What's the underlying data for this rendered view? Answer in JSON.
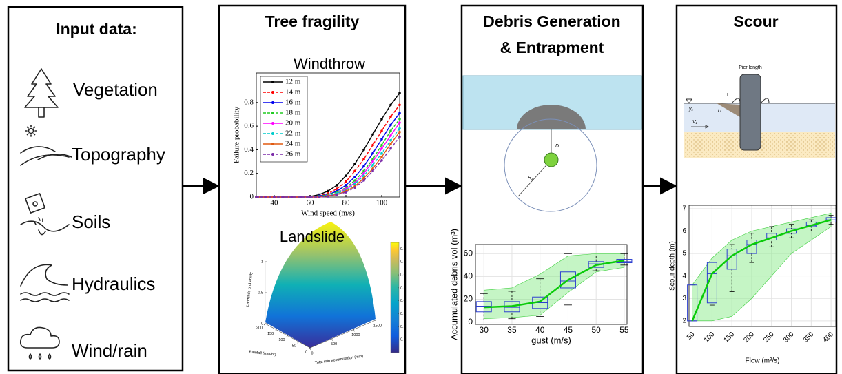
{
  "input_panel": {
    "title": "Input data:",
    "items": [
      "Vegetation",
      "Topography",
      "Soils",
      "Hydraulics",
      "Wind/rain"
    ]
  },
  "fragility_panel": {
    "title": "Tree fragility",
    "windthrow": {
      "type": "line",
      "title": "Windthrow",
      "xlabel": "Wind speed (m/s)",
      "ylabel": "Failure probability",
      "xlim": [
        30,
        110
      ],
      "ylim": [
        0,
        1.05
      ],
      "xticks": [
        40,
        60,
        80,
        100
      ],
      "yticks": [
        0,
        0.2,
        0.4,
        0.6,
        0.8
      ],
      "x": [
        30,
        35,
        40,
        45,
        50,
        55,
        60,
        65,
        70,
        75,
        80,
        85,
        90,
        95,
        100,
        105,
        110
      ],
      "series": [
        {
          "name": "12 m",
          "color": "#000000",
          "values": [
            0,
            0,
            0,
            0,
            0,
            0,
            0.005,
            0.02,
            0.05,
            0.1,
            0.18,
            0.28,
            0.4,
            0.53,
            0.66,
            0.78,
            0.88
          ]
        },
        {
          "name": "14 m",
          "color": "#ff0000",
          "values": [
            0,
            0,
            0,
            0,
            0,
            0,
            0,
            0.01,
            0.03,
            0.07,
            0.13,
            0.22,
            0.32,
            0.44,
            0.56,
            0.68,
            0.78
          ]
        },
        {
          "name": "16 m",
          "color": "#0000ee",
          "values": [
            0,
            0,
            0,
            0,
            0,
            0,
            0,
            0.01,
            0.02,
            0.05,
            0.1,
            0.17,
            0.26,
            0.37,
            0.49,
            0.61,
            0.71
          ]
        },
        {
          "name": "18 m",
          "color": "#22cc22",
          "values": [
            0,
            0,
            0,
            0,
            0,
            0,
            0,
            0.005,
            0.02,
            0.04,
            0.08,
            0.14,
            0.22,
            0.32,
            0.44,
            0.56,
            0.66
          ]
        },
        {
          "name": "20 m",
          "color": "#ff00ff",
          "values": [
            0,
            0,
            0,
            0,
            0,
            0,
            0,
            0,
            0.01,
            0.03,
            0.07,
            0.12,
            0.2,
            0.3,
            0.41,
            0.52,
            0.63
          ]
        },
        {
          "name": "22 m",
          "color": "#00cccc",
          "values": [
            0,
            0,
            0,
            0,
            0,
            0,
            0,
            0,
            0.01,
            0.03,
            0.06,
            0.11,
            0.18,
            0.27,
            0.37,
            0.48,
            0.58
          ]
        },
        {
          "name": "24 m",
          "color": "#e05a10",
          "values": [
            0,
            0,
            0,
            0,
            0,
            0,
            0,
            0,
            0.01,
            0.02,
            0.05,
            0.09,
            0.16,
            0.24,
            0.34,
            0.45,
            0.55
          ]
        },
        {
          "name": "26 m",
          "color": "#7b2aa8",
          "values": [
            0,
            0,
            0,
            0,
            0,
            0,
            0,
            0,
            0.005,
            0.02,
            0.04,
            0.08,
            0.14,
            0.22,
            0.31,
            0.41,
            0.51
          ]
        }
      ]
    },
    "landslide": {
      "type": "surface",
      "title": "Landslide",
      "zlabel": "Landslide probability",
      "rain_label": "Rainfall (mm/hr)",
      "accum_label": "Total rain accumulation (mm)",
      "zticks": [
        0,
        0.5,
        1
      ],
      "rain_ticks": [
        0,
        50,
        100,
        150,
        200
      ],
      "accum_ticks": [
        0,
        500,
        1000,
        1500
      ],
      "clim": [
        0,
        0.85
      ],
      "colorbar_ticks": [
        0.1,
        0.2,
        0.3,
        0.4,
        0.5,
        0.6,
        0.7,
        0.8
      ]
    }
  },
  "debris_panel": {
    "title_lines": [
      "Debris Generation",
      "& Entrapment"
    ],
    "diagram_labels": [
      "D",
      "H₁"
    ],
    "chart": {
      "type": "box",
      "xlabel": "gust (m/s)",
      "ylabel": "Accumulated debris vol (m³)",
      "xlim": [
        28.5,
        55.5
      ],
      "ylim": [
        -2,
        68
      ],
      "xticks": [
        30,
        35,
        40,
        45,
        50,
        55
      ],
      "yticks": [
        0,
        20,
        40,
        60
      ],
      "grid": true,
      "x": [
        30,
        35,
        40,
        45,
        50,
        55
      ],
      "boxes": [
        {
          "low": 2,
          "q1": 9,
          "median": 14,
          "q3": 18,
          "high": 25
        },
        {
          "low": 3,
          "q1": 9,
          "median": 13,
          "q3": 18,
          "high": 27
        },
        {
          "low": 5,
          "q1": 12,
          "median": 17,
          "q3": 22,
          "high": 38
        },
        {
          "low": 15,
          "q1": 30,
          "median": 36,
          "q3": 44,
          "high": 60
        },
        {
          "low": 45,
          "q1": 48,
          "median": 51,
          "q3": 53,
          "high": 58
        },
        {
          "low": 50,
          "q1": 52,
          "median": 53,
          "q3": 55,
          "high": 60
        }
      ],
      "mean": [
        13,
        14,
        18,
        37,
        50,
        54
      ],
      "band_low": [
        3,
        4,
        6,
        26,
        44,
        48
      ],
      "band_high": [
        28,
        30,
        42,
        58,
        60,
        60
      ]
    }
  },
  "scour_panel": {
    "title": "Scour",
    "diagram_labels": [
      "Pier length",
      "L",
      "H",
      "y₁",
      "V₁"
    ],
    "chart": {
      "type": "box",
      "xlabel": "Flow (m³/s)",
      "ylabel": "Scour depth (m)",
      "xlim": [
        42,
        412
      ],
      "ylim": [
        1.75,
        7.15
      ],
      "xticks": [
        50,
        100,
        150,
        200,
        250,
        300,
        350,
        400
      ],
      "yticks": [
        2,
        3,
        4,
        5,
        6,
        7
      ],
      "grid": true,
      "x": [
        50,
        100,
        150,
        200,
        250,
        300,
        350,
        400
      ],
      "boxes": [
        {
          "low": 2,
          "q1": 2,
          "median": 2,
          "q3": 3.6,
          "high": 3.6
        },
        {
          "low": 2.7,
          "q1": 2.8,
          "median": 4.1,
          "q3": 4.6,
          "high": 4.8
        },
        {
          "low": 3.3,
          "q1": 4.3,
          "median": 4.9,
          "q3": 5.2,
          "high": 5.4
        },
        {
          "low": 4.6,
          "q1": 5,
          "median": 5.4,
          "q3": 5.6,
          "high": 5.9
        },
        {
          "low": 5.3,
          "q1": 5.6,
          "median": 5.7,
          "q3": 5.9,
          "high": 6.2
        },
        {
          "low": 5.7,
          "q1": 5.9,
          "median": 6,
          "q3": 6.1,
          "high": 6.3
        },
        {
          "low": 6,
          "q1": 6.2,
          "median": 6.25,
          "q3": 6.4,
          "high": 6.5
        },
        {
          "low": 6.3,
          "q1": 6.4,
          "median": 6.5,
          "q3": 6.6,
          "high": 6.7
        }
      ],
      "mean": [
        2,
        4.1,
        4.9,
        5.4,
        5.7,
        6,
        6.25,
        6.5
      ],
      "band_low": [
        2,
        2,
        2.2,
        3,
        4,
        5,
        5.6,
        6.2
      ],
      "band_high": [
        3.6,
        4.8,
        5.6,
        6,
        6.2,
        6.4,
        6.6,
        6.8
      ]
    }
  }
}
